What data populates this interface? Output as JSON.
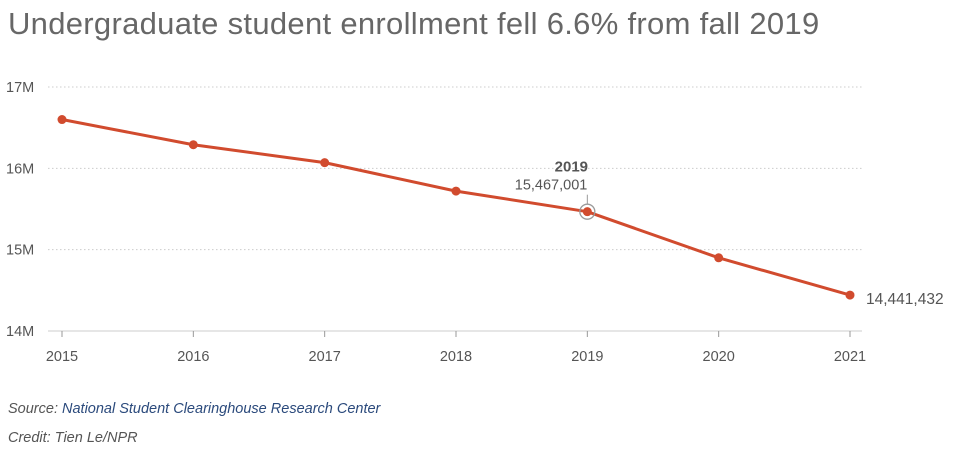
{
  "title": "Undergraduate student enrollment fell 6.6% from fall 2019",
  "colors": {
    "line": "#d14b2e",
    "grid": "#cccccc",
    "text": "#555555",
    "source_link": "#2b4a7c"
  },
  "chart_data": {
    "type": "line",
    "x": [
      "2015",
      "2016",
      "2017",
      "2018",
      "2019",
      "2020",
      "2021"
    ],
    "series": [
      {
        "values": [
          16600000,
          16290000,
          16070000,
          15720000,
          15467001,
          14900000,
          14441432
        ]
      }
    ],
    "ylim": [
      14000000,
      17000000
    ],
    "yticks": [
      {
        "value": 14000000,
        "label": "14M"
      },
      {
        "value": 15000000,
        "label": "15M"
      },
      {
        "value": 16000000,
        "label": "16M"
      },
      {
        "value": 17000000,
        "label": "17M"
      }
    ],
    "grid": true,
    "annotations": [
      {
        "x": "2019",
        "title": "2019",
        "label": "15,467,001"
      },
      {
        "x": "2021",
        "label": "14,441,432"
      }
    ]
  },
  "source": {
    "prefix": "Source: ",
    "link_text": "National Student Clearinghouse Research Center"
  },
  "credit": "Credit: Tien Le/NPR"
}
